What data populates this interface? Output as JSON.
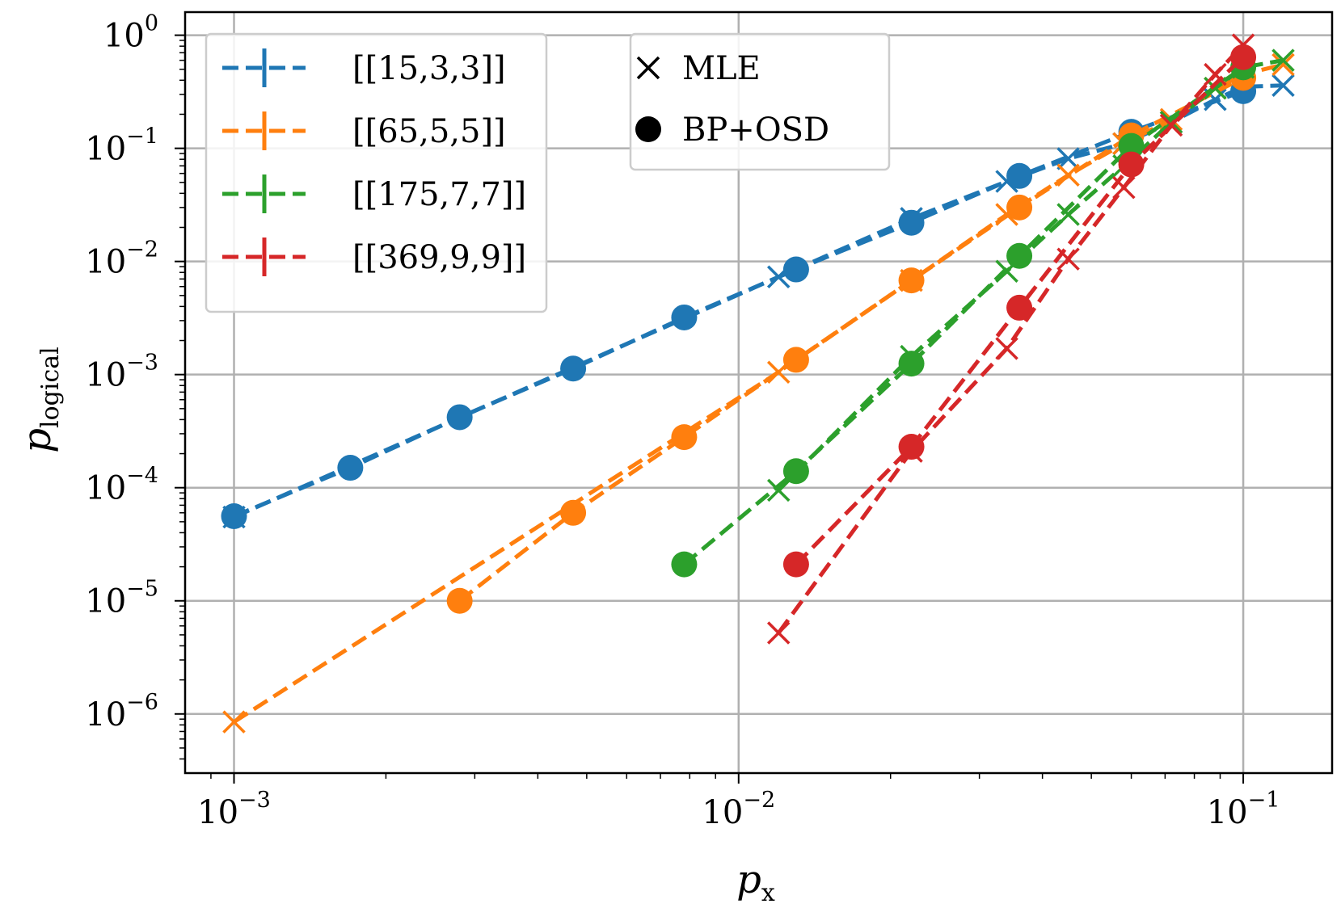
{
  "chart_data": {
    "type": "line",
    "xscale": "log",
    "yscale": "log",
    "xlim": [
      0.0008,
      0.15
    ],
    "ylim": [
      3e-07,
      1.6
    ],
    "grid": true,
    "xlabel": {
      "base": "p",
      "sub": "x"
    },
    "ylabel": {
      "base": "p",
      "sub": "logical"
    },
    "x_ticks": [
      {
        "value": 0.001,
        "base": "10",
        "exp": "−3"
      },
      {
        "value": 0.01,
        "base": "10",
        "exp": "−2"
      },
      {
        "value": 0.1,
        "base": "10",
        "exp": "−1"
      }
    ],
    "y_ticks": [
      {
        "value": 1,
        "base": "10",
        "exp": "0"
      },
      {
        "value": 0.1,
        "base": "10",
        "exp": "−1"
      },
      {
        "value": 0.01,
        "base": "10",
        "exp": "−2"
      },
      {
        "value": 0.001,
        "base": "10",
        "exp": "−3"
      },
      {
        "value": 0.0001,
        "base": "10",
        "exp": "−4"
      },
      {
        "value": 1e-05,
        "base": "10",
        "exp": "−5"
      },
      {
        "value": 1e-06,
        "base": "10",
        "exp": "−6"
      }
    ],
    "series": [
      {
        "name": "[[15,3,3]]",
        "color": "#1f77b4",
        "mle": {
          "x": [
            0.001,
            0.012,
            0.022,
            0.034,
            0.045,
            0.058,
            0.072,
            0.088,
            0.1,
            0.12
          ],
          "y": [
            5.5e-05,
            0.0073,
            0.024,
            0.051,
            0.081,
            0.11,
            0.17,
            0.27,
            0.35,
            0.36
          ]
        },
        "bposd": {
          "x": [
            0.001,
            0.0017,
            0.0028,
            0.0047,
            0.0078,
            0.013,
            0.022,
            0.036,
            0.06,
            0.1
          ],
          "y": [
            5.6e-05,
            0.00015,
            0.00042,
            0.00113,
            0.0032,
            0.0085,
            0.022,
            0.057,
            0.14,
            0.32
          ]
        }
      },
      {
        "name": "[[65,5,5]]",
        "color": "#ff7f0e",
        "mle": {
          "x": [
            0.001,
            0.012,
            0.022,
            0.034,
            0.045,
            0.058,
            0.072,
            0.088,
            0.1,
            0.12
          ],
          "y": [
            8.5e-07,
            0.00105,
            0.0068,
            0.026,
            0.058,
            0.11,
            0.18,
            0.34,
            0.45,
            0.55
          ]
        },
        "bposd": {
          "x": [
            0.0028,
            0.0047,
            0.0078,
            0.013,
            0.022,
            0.036,
            0.06,
            0.1
          ],
          "y": [
            1e-05,
            6e-05,
            0.00028,
            0.00135,
            0.0068,
            0.03,
            0.13,
            0.42
          ]
        }
      },
      {
        "name": "[[175,7,7]]",
        "color": "#2ca02c",
        "mle": {
          "x": [
            0.012,
            0.022,
            0.034,
            0.045,
            0.058,
            0.072,
            0.088,
            0.1,
            0.12
          ],
          "y": [
            9.5e-05,
            0.00145,
            0.0082,
            0.026,
            0.07,
            0.17,
            0.34,
            0.52,
            0.6
          ]
        },
        "bposd": {
          "x": [
            0.0078,
            0.013,
            0.022,
            0.036,
            0.06,
            0.1
          ],
          "y": [
            2.1e-05,
            0.00014,
            0.00125,
            0.0112,
            0.105,
            0.52
          ]
        }
      },
      {
        "name": "[[369,9,9]]",
        "color": "#d62728",
        "mle": {
          "x": [
            0.012,
            0.022,
            0.034,
            0.045,
            0.058,
            0.072,
            0.088,
            0.1
          ],
          "y": [
            5.2e-06,
            0.00021,
            0.0017,
            0.0105,
            0.045,
            0.16,
            0.45,
            0.82
          ]
        },
        "bposd": {
          "x": [
            0.013,
            0.022,
            0.036,
            0.06,
            0.1
          ],
          "y": [
            2.1e-05,
            0.00023,
            0.0039,
            0.072,
            0.64
          ]
        }
      }
    ],
    "legend_series_position": "top-left",
    "legend_markers": [
      {
        "symbol": "×",
        "label": "MLE"
      },
      {
        "symbol": "●",
        "label": "BP+OSD"
      }
    ],
    "legend_markers_position": "top-center"
  }
}
